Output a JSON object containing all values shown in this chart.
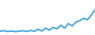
{
  "values": [
    19.5,
    19.8,
    19.3,
    19.6,
    19.2,
    19.5,
    19.8,
    19.3,
    20.0,
    19.4,
    20.8,
    19.6,
    21.5,
    20.2,
    22.0,
    21.0,
    23.5,
    21.5,
    24.5,
    23.0,
    25.5,
    26.5,
    28.0,
    27.0,
    30.0,
    33.5
  ],
  "line_color": "#3a9fd8",
  "line_width": 1.3,
  "background_color": "#ffffff",
  "ylim_min": 17.0,
  "ylim_max": 40.0
}
